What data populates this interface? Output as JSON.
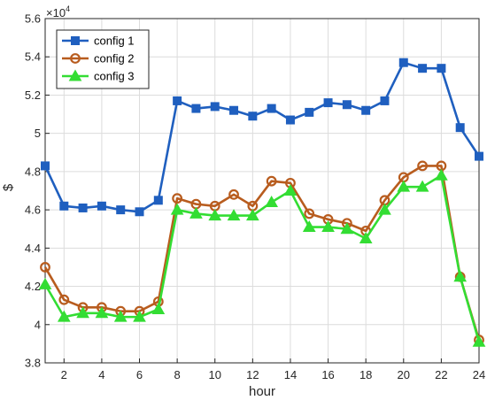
{
  "chart_data": {
    "type": "line",
    "xlabel": "hour",
    "ylabel": "$",
    "y_exponent_label": "×10",
    "y_exponent_power": "4",
    "xlim": [
      1,
      24
    ],
    "ylim": [
      3.8,
      5.6
    ],
    "x_ticks": [
      2,
      4,
      6,
      8,
      10,
      12,
      14,
      16,
      18,
      20,
      22,
      24
    ],
    "y_ticks": [
      3.8,
      4,
      4.2,
      4.4,
      4.6,
      4.8,
      5,
      5.2,
      5.4,
      5.6
    ],
    "y_tick_labels": [
      "3.8",
      "4",
      "4.2",
      "4.4",
      "4.6",
      "4.8",
      "5",
      "5.2",
      "5.4",
      "5.6"
    ],
    "grid": true,
    "legend_position": "top-left",
    "x": [
      1,
      2,
      3,
      4,
      5,
      6,
      7,
      8,
      9,
      10,
      11,
      12,
      13,
      14,
      15,
      16,
      17,
      18,
      19,
      20,
      21,
      22,
      23,
      24
    ],
    "series": [
      {
        "name": "config 1",
        "color": "#1f5fbf",
        "marker": "square",
        "values": [
          4.83,
          4.62,
          4.61,
          4.62,
          4.6,
          4.59,
          4.65,
          5.17,
          5.13,
          5.14,
          5.12,
          5.09,
          5.13,
          5.07,
          5.11,
          5.16,
          5.15,
          5.12,
          5.17,
          5.37,
          5.34,
          5.34,
          5.03,
          4.88
        ]
      },
      {
        "name": "config 2",
        "color": "#b85c1e",
        "marker": "circle",
        "values": [
          4.3,
          4.13,
          4.09,
          4.09,
          4.07,
          4.07,
          4.12,
          4.66,
          4.63,
          4.62,
          4.68,
          4.62,
          4.75,
          4.74,
          4.58,
          4.55,
          4.53,
          4.49,
          4.65,
          4.77,
          4.83,
          4.83,
          4.25,
          3.92
        ]
      },
      {
        "name": "config 3",
        "color": "#33dd33",
        "marker": "triangle",
        "values": [
          4.21,
          4.04,
          4.06,
          4.06,
          4.04,
          4.04,
          4.08,
          4.6,
          4.58,
          4.57,
          4.57,
          4.57,
          4.64,
          4.7,
          4.51,
          4.51,
          4.5,
          4.45,
          4.6,
          4.72,
          4.72,
          4.78,
          4.25,
          3.91
        ]
      }
    ]
  }
}
